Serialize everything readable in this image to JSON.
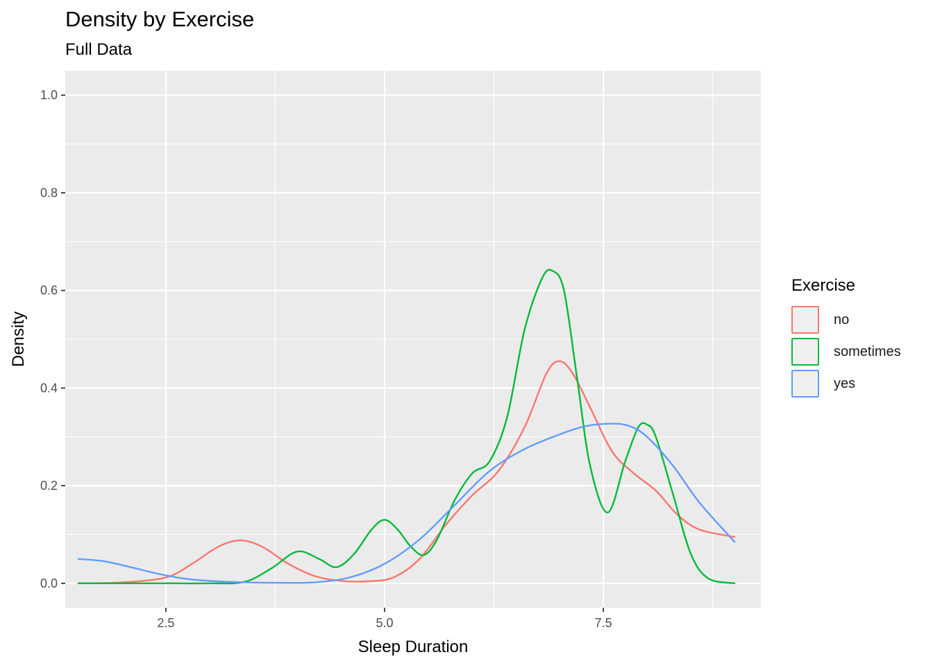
{
  "chart_data": {
    "type": "line",
    "title": "Density by Exercise",
    "subtitle": "Full Data",
    "xlabel": "Sleep Duration",
    "ylabel": "Density",
    "xlim": [
      1.35,
      9.3
    ],
    "ylim": [
      -0.05,
      1.05
    ],
    "x_ticks": [
      2.5,
      5.0,
      7.5
    ],
    "x_tick_labels": [
      "2.5",
      "5.0",
      "7.5"
    ],
    "y_ticks": [
      0.0,
      0.2,
      0.4,
      0.6,
      0.8,
      1.0
    ],
    "y_tick_labels": [
      "0.0",
      "0.2",
      "0.4",
      "0.6",
      "0.8",
      "1.0"
    ],
    "grid": true,
    "legend_title": "Exercise",
    "legend_position": "right",
    "series": [
      {
        "name": "no",
        "color": "#F8766D",
        "x": [
          1.5,
          2.0,
          2.5,
          2.8,
          3.1,
          3.35,
          3.6,
          3.9,
          4.2,
          4.5,
          4.8,
          5.1,
          5.4,
          5.7,
          6.0,
          6.3,
          6.6,
          6.85,
          7.0,
          7.15,
          7.35,
          7.6,
          7.85,
          8.1,
          8.35,
          8.6,
          9.0
        ],
        "y": [
          0.0,
          0.002,
          0.012,
          0.04,
          0.075,
          0.088,
          0.075,
          0.04,
          0.015,
          0.005,
          0.004,
          0.012,
          0.05,
          0.12,
          0.18,
          0.23,
          0.32,
          0.43,
          0.455,
          0.43,
          0.36,
          0.27,
          0.225,
          0.19,
          0.14,
          0.11,
          0.095
        ]
      },
      {
        "name": "sometimes",
        "color": "#00BA38",
        "x": [
          1.5,
          2.5,
          3.0,
          3.4,
          3.7,
          4.0,
          4.25,
          4.45,
          4.65,
          4.85,
          5.0,
          5.15,
          5.3,
          5.45,
          5.6,
          5.8,
          6.0,
          6.2,
          6.4,
          6.6,
          6.8,
          6.92,
          7.05,
          7.2,
          7.35,
          7.55,
          7.75,
          7.9,
          8.0,
          8.1,
          8.3,
          8.5,
          8.7,
          9.0
        ],
        "y": [
          0.0,
          0.0,
          0.0,
          0.003,
          0.03,
          0.065,
          0.05,
          0.033,
          0.06,
          0.11,
          0.13,
          0.11,
          0.075,
          0.058,
          0.09,
          0.17,
          0.225,
          0.25,
          0.34,
          0.52,
          0.625,
          0.64,
          0.6,
          0.42,
          0.24,
          0.145,
          0.25,
          0.32,
          0.325,
          0.3,
          0.18,
          0.06,
          0.01,
          0.0
        ]
      },
      {
        "name": "yes",
        "color": "#619CFF",
        "x": [
          1.5,
          1.8,
          2.1,
          2.4,
          2.7,
          3.0,
          3.4,
          3.8,
          4.2,
          4.6,
          5.0,
          5.4,
          5.8,
          6.2,
          6.6,
          7.0,
          7.3,
          7.6,
          7.8,
          8.0,
          8.3,
          8.6,
          9.0
        ],
        "y": [
          0.05,
          0.045,
          0.033,
          0.02,
          0.01,
          0.005,
          0.002,
          0.001,
          0.002,
          0.012,
          0.04,
          0.09,
          0.16,
          0.23,
          0.275,
          0.305,
          0.322,
          0.327,
          0.322,
          0.3,
          0.24,
          0.165,
          0.085
        ]
      }
    ]
  }
}
